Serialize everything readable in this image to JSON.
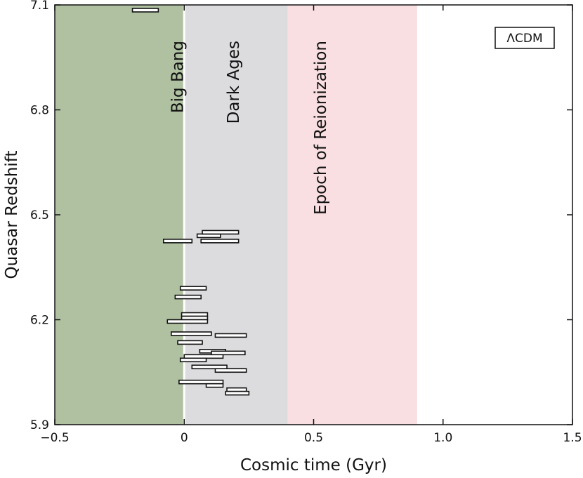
{
  "chart_data": {
    "type": "scatter",
    "xlabel": "Cosmic time (Gyr)",
    "ylabel": "Quasar Redshift",
    "xlim": [
      -0.5,
      1.5
    ],
    "ylim": [
      5.9,
      7.1
    ],
    "xticks": [
      -0.5,
      0,
      0.5,
      1.0,
      1.5
    ],
    "xtick_labels": [
      "−0.5",
      "0",
      "0.5",
      "1.0",
      "1.5"
    ],
    "yticks": [
      5.9,
      6.2,
      6.5,
      6.8,
      7.1
    ],
    "ytick_labels": [
      "5.9",
      "6.2",
      "6.5",
      "6.8",
      "7.1"
    ],
    "grid": false,
    "legend": {
      "text": "ΛCDM",
      "position": "top-right"
    },
    "regions": [
      {
        "label": "",
        "x0": -0.5,
        "x1": 0.0,
        "color": "#b0c1a2"
      },
      {
        "label": "Dark Ages",
        "x0": 0.0,
        "x1": 0.4,
        "color": "#dcdbde"
      },
      {
        "label": "Epoch of Reionization",
        "x0": 0.4,
        "x1": 0.9,
        "color": "#f9dfe1"
      }
    ],
    "vline": {
      "label": "Big Bang",
      "x": 0.0,
      "color": "#ffffff"
    },
    "series": [
      {
        "marker": "horizontal-bar",
        "points": [
          {
            "x0": -0.2,
            "x1": -0.1,
            "y": 7.085
          },
          {
            "x0": -0.08,
            "x1": 0.03,
            "y": 6.425
          },
          {
            "x0": 0.05,
            "x1": 0.14,
            "y": 6.44
          },
          {
            "x0": 0.07,
            "x1": 0.21,
            "y": 6.45
          },
          {
            "x0": 0.065,
            "x1": 0.21,
            "y": 6.425
          },
          {
            "x0": -0.015,
            "x1": 0.085,
            "y": 6.29
          },
          {
            "x0": -0.035,
            "x1": 0.065,
            "y": 6.265
          },
          {
            "x0": -0.01,
            "x1": 0.09,
            "y": 6.215
          },
          {
            "x0": -0.01,
            "x1": 0.09,
            "y": 6.205
          },
          {
            "x0": -0.065,
            "x1": 0.09,
            "y": 6.195
          },
          {
            "x0": -0.05,
            "x1": 0.105,
            "y": 6.16
          },
          {
            "x0": 0.12,
            "x1": 0.24,
            "y": 6.155
          },
          {
            "x0": -0.025,
            "x1": 0.07,
            "y": 6.135
          },
          {
            "x0": 0.06,
            "x1": 0.16,
            "y": 6.11
          },
          {
            "x0": 0.105,
            "x1": 0.235,
            "y": 6.105
          },
          {
            "x0": 0.0,
            "x1": 0.15,
            "y": 6.095
          },
          {
            "x0": -0.015,
            "x1": 0.085,
            "y": 6.085
          },
          {
            "x0": 0.03,
            "x1": 0.165,
            "y": 6.065
          },
          {
            "x0": 0.12,
            "x1": 0.24,
            "y": 6.055
          },
          {
            "x0": -0.02,
            "x1": 0.15,
            "y": 6.022
          },
          {
            "x0": 0.085,
            "x1": 0.15,
            "y": 6.012
          },
          {
            "x0": 0.165,
            "x1": 0.24,
            "y": 6.0
          },
          {
            "x0": 0.16,
            "x1": 0.25,
            "y": 5.99
          }
        ]
      }
    ]
  }
}
